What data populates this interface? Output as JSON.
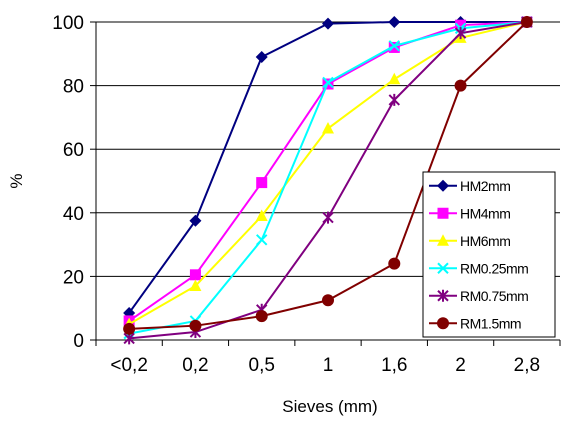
{
  "chart_data": {
    "type": "line",
    "title": "",
    "xlabel": "Sieves (mm)",
    "ylabel": "%",
    "categories": [
      "<0,2",
      "0,2",
      "0,5",
      "1",
      "1,6",
      "2",
      "2,8"
    ],
    "ylim": [
      0,
      100
    ],
    "yticks": [
      "0",
      "20",
      "40",
      "60",
      "80",
      "100"
    ],
    "grid": "horizontal",
    "legend_position": "right",
    "series": [
      {
        "name": "HM2mm",
        "color": "#000080",
        "marker": "diamond",
        "values": [
          8.5,
          37.5,
          89,
          99.5,
          100,
          100,
          100
        ]
      },
      {
        "name": "HM4mm",
        "color": "#ff00ff",
        "marker": "square",
        "values": [
          6,
          20.5,
          49.5,
          80.5,
          92,
          99,
          100
        ]
      },
      {
        "name": "HM6mm",
        "color": "#ffff00",
        "marker": "triangle",
        "values": [
          5,
          17,
          39,
          66.5,
          82,
          95,
          100
        ]
      },
      {
        "name": "RM0.25mm",
        "color": "#00ffff",
        "marker": "x",
        "values": [
          2,
          6,
          31.5,
          81,
          92.5,
          98,
          100
        ]
      },
      {
        "name": "RM0.75mm",
        "color": "#800080",
        "marker": "star",
        "values": [
          0.5,
          2.5,
          9.5,
          38.5,
          75.5,
          96.5,
          100
        ]
      },
      {
        "name": "RM1.5mm",
        "color": "#800000",
        "marker": "circle",
        "values": [
          3.5,
          4.5,
          7.5,
          12.5,
          24,
          80,
          100
        ]
      }
    ]
  }
}
